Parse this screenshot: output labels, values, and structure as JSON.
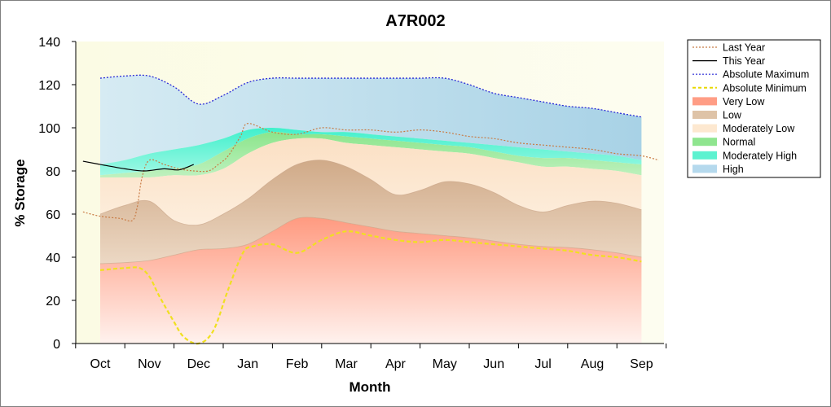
{
  "chart_data": {
    "type": "area",
    "title": "A7R002",
    "xlabel": "Month",
    "ylabel": "% Storage",
    "ylim": [
      0,
      140
    ],
    "yticks": [
      0,
      20,
      40,
      60,
      80,
      100,
      120,
      140
    ],
    "categories": [
      "Oct",
      "Nov",
      "Dec",
      "Jan",
      "Feb",
      "Mar",
      "Apr",
      "May",
      "Jun",
      "Jul",
      "Aug",
      "Sep"
    ],
    "legend_position": "right",
    "grid": false,
    "bands": {
      "x": [
        0,
        0.5,
        1,
        1.5,
        2,
        2.5,
        3,
        3.5,
        4,
        4.5,
        5,
        5.5,
        6,
        6.5,
        7,
        7.5,
        8,
        8.5,
        9,
        9.5,
        10,
        10.5,
        11
      ],
      "very_low_top": [
        37,
        37.5,
        38.5,
        41,
        43.5,
        44,
        46,
        52,
        58,
        58,
        56,
        54,
        52,
        51,
        50,
        49,
        47.5,
        46,
        45,
        44.5,
        43.5,
        42,
        40
      ],
      "low_top": [
        60,
        64,
        66,
        57,
        55,
        60,
        67,
        76,
        83,
        85,
        82,
        76,
        69,
        71,
        75,
        74,
        70,
        64,
        61,
        64,
        66,
        65,
        62
      ],
      "mod_low_top": [
        77,
        77,
        77,
        78,
        78,
        81,
        88,
        93,
        95,
        95,
        93,
        92,
        91,
        90,
        89,
        88,
        86,
        84,
        82,
        82,
        81,
        80,
        78
      ],
      "normal_top": [
        78,
        79,
        80,
        81,
        83,
        89,
        95,
        98,
        97,
        97,
        96,
        95,
        94,
        93,
        92,
        91,
        89,
        87,
        86,
        86,
        85,
        84,
        83
      ],
      "mod_high_top": [
        83,
        85,
        88,
        90,
        92,
        95,
        99,
        100,
        99,
        98,
        98,
        97,
        96,
        95,
        94,
        93,
        92,
        91,
        90,
        89,
        88,
        87,
        85
      ],
      "high_top": [
        123,
        124,
        124,
        119,
        111,
        115,
        121,
        123,
        123,
        123,
        123,
        123,
        123,
        123,
        123,
        120,
        116,
        114,
        112,
        110,
        109,
        107,
        105
      ]
    },
    "series": [
      {
        "name": "Last Year",
        "color": "#c87a43",
        "x": [
          -0.35,
          0,
          0.4,
          0.65,
          0.75,
          0.85,
          1.0,
          1.3,
          1.6,
          1.9,
          2.2,
          2.4,
          2.6,
          2.85,
          3.0,
          3.5,
          4.0,
          4.5,
          5.0,
          5.5,
          6.0,
          6.5,
          7.0,
          7.5,
          8.0,
          8.5,
          9.0,
          9.5,
          10.0,
          10.5,
          11.0,
          11.35
        ],
        "values": [
          61,
          59,
          58,
          57,
          63,
          77,
          85,
          83,
          81,
          80,
          80,
          83,
          87,
          96,
          102,
          98,
          97,
          100,
          99,
          99,
          98,
          99,
          98,
          96,
          95,
          93,
          92,
          91,
          90,
          88,
          87,
          85
        ]
      },
      {
        "name": "This Year",
        "color": "#000000",
        "x": [
          -0.35,
          0,
          0.5,
          0.9,
          1.3,
          1.6,
          1.9
        ],
        "values": [
          84.5,
          83,
          81,
          80,
          81,
          80.5,
          83
        ]
      },
      {
        "name": "Absolute Maximum",
        "color": "#2a2ad6",
        "x": [
          0,
          0.5,
          1,
          1.5,
          2,
          2.5,
          3,
          3.5,
          4,
          4.5,
          5,
          5.5,
          6,
          6.5,
          7,
          7.5,
          8,
          8.5,
          9,
          9.5,
          10,
          10.5,
          11
        ],
        "values": [
          123,
          124,
          124,
          119,
          111,
          115,
          121,
          123,
          123,
          123,
          123,
          123,
          123,
          123,
          123,
          120,
          116,
          114,
          112,
          110,
          109,
          107,
          105
        ]
      },
      {
        "name": "Absolute Minimum",
        "color": "#f0e020",
        "x": [
          0,
          0.5,
          0.8,
          1.0,
          1.2,
          1.5,
          1.7,
          2.0,
          2.3,
          2.6,
          2.9,
          3.1,
          3.5,
          4.0,
          4.5,
          5.0,
          5.5,
          6.0,
          6.5,
          7.0,
          7.5,
          8.0,
          8.5,
          9.0,
          9.5,
          10.0,
          10.5,
          11.0
        ],
        "values": [
          34,
          35,
          35,
          31,
          22,
          10,
          3,
          0,
          6,
          25,
          42,
          45,
          46,
          42,
          48,
          52,
          50,
          48,
          47,
          48,
          47,
          46,
          45,
          44,
          43,
          41,
          40,
          38
        ]
      }
    ],
    "legend": [
      {
        "label": "Last Year",
        "kind": "line",
        "color": "#c87a43",
        "dash": "2,2"
      },
      {
        "label": "This Year",
        "kind": "line",
        "color": "#000000",
        "dash": ""
      },
      {
        "label": "Absolute Maximum",
        "kind": "line",
        "color": "#2a2ad6",
        "dash": "2,2"
      },
      {
        "label": "Absolute Minimum",
        "kind": "line",
        "color": "#e8d800",
        "dash": "4,3"
      },
      {
        "label": "Very Low",
        "kind": "band",
        "color": "#ff8c70"
      },
      {
        "label": "Low",
        "kind": "band",
        "color": "#d8b898"
      },
      {
        "label": "Moderately Low",
        "kind": "band",
        "color": "#fde4c8"
      },
      {
        "label": "Normal",
        "kind": "band",
        "color": "#7be07b"
      },
      {
        "label": "Moderately High",
        "kind": "band",
        "color": "#40f0c8"
      },
      {
        "label": "High",
        "kind": "band",
        "color": "#a8d2ea"
      }
    ],
    "colors": {
      "plot_background": "#fdfde8",
      "very_low": "#ff9a80",
      "low": "#d8b898",
      "mod_low": "#fde4c8",
      "normal": "#8de88d",
      "mod_high": "#50f0d0",
      "high": "#b4d8ea"
    }
  }
}
